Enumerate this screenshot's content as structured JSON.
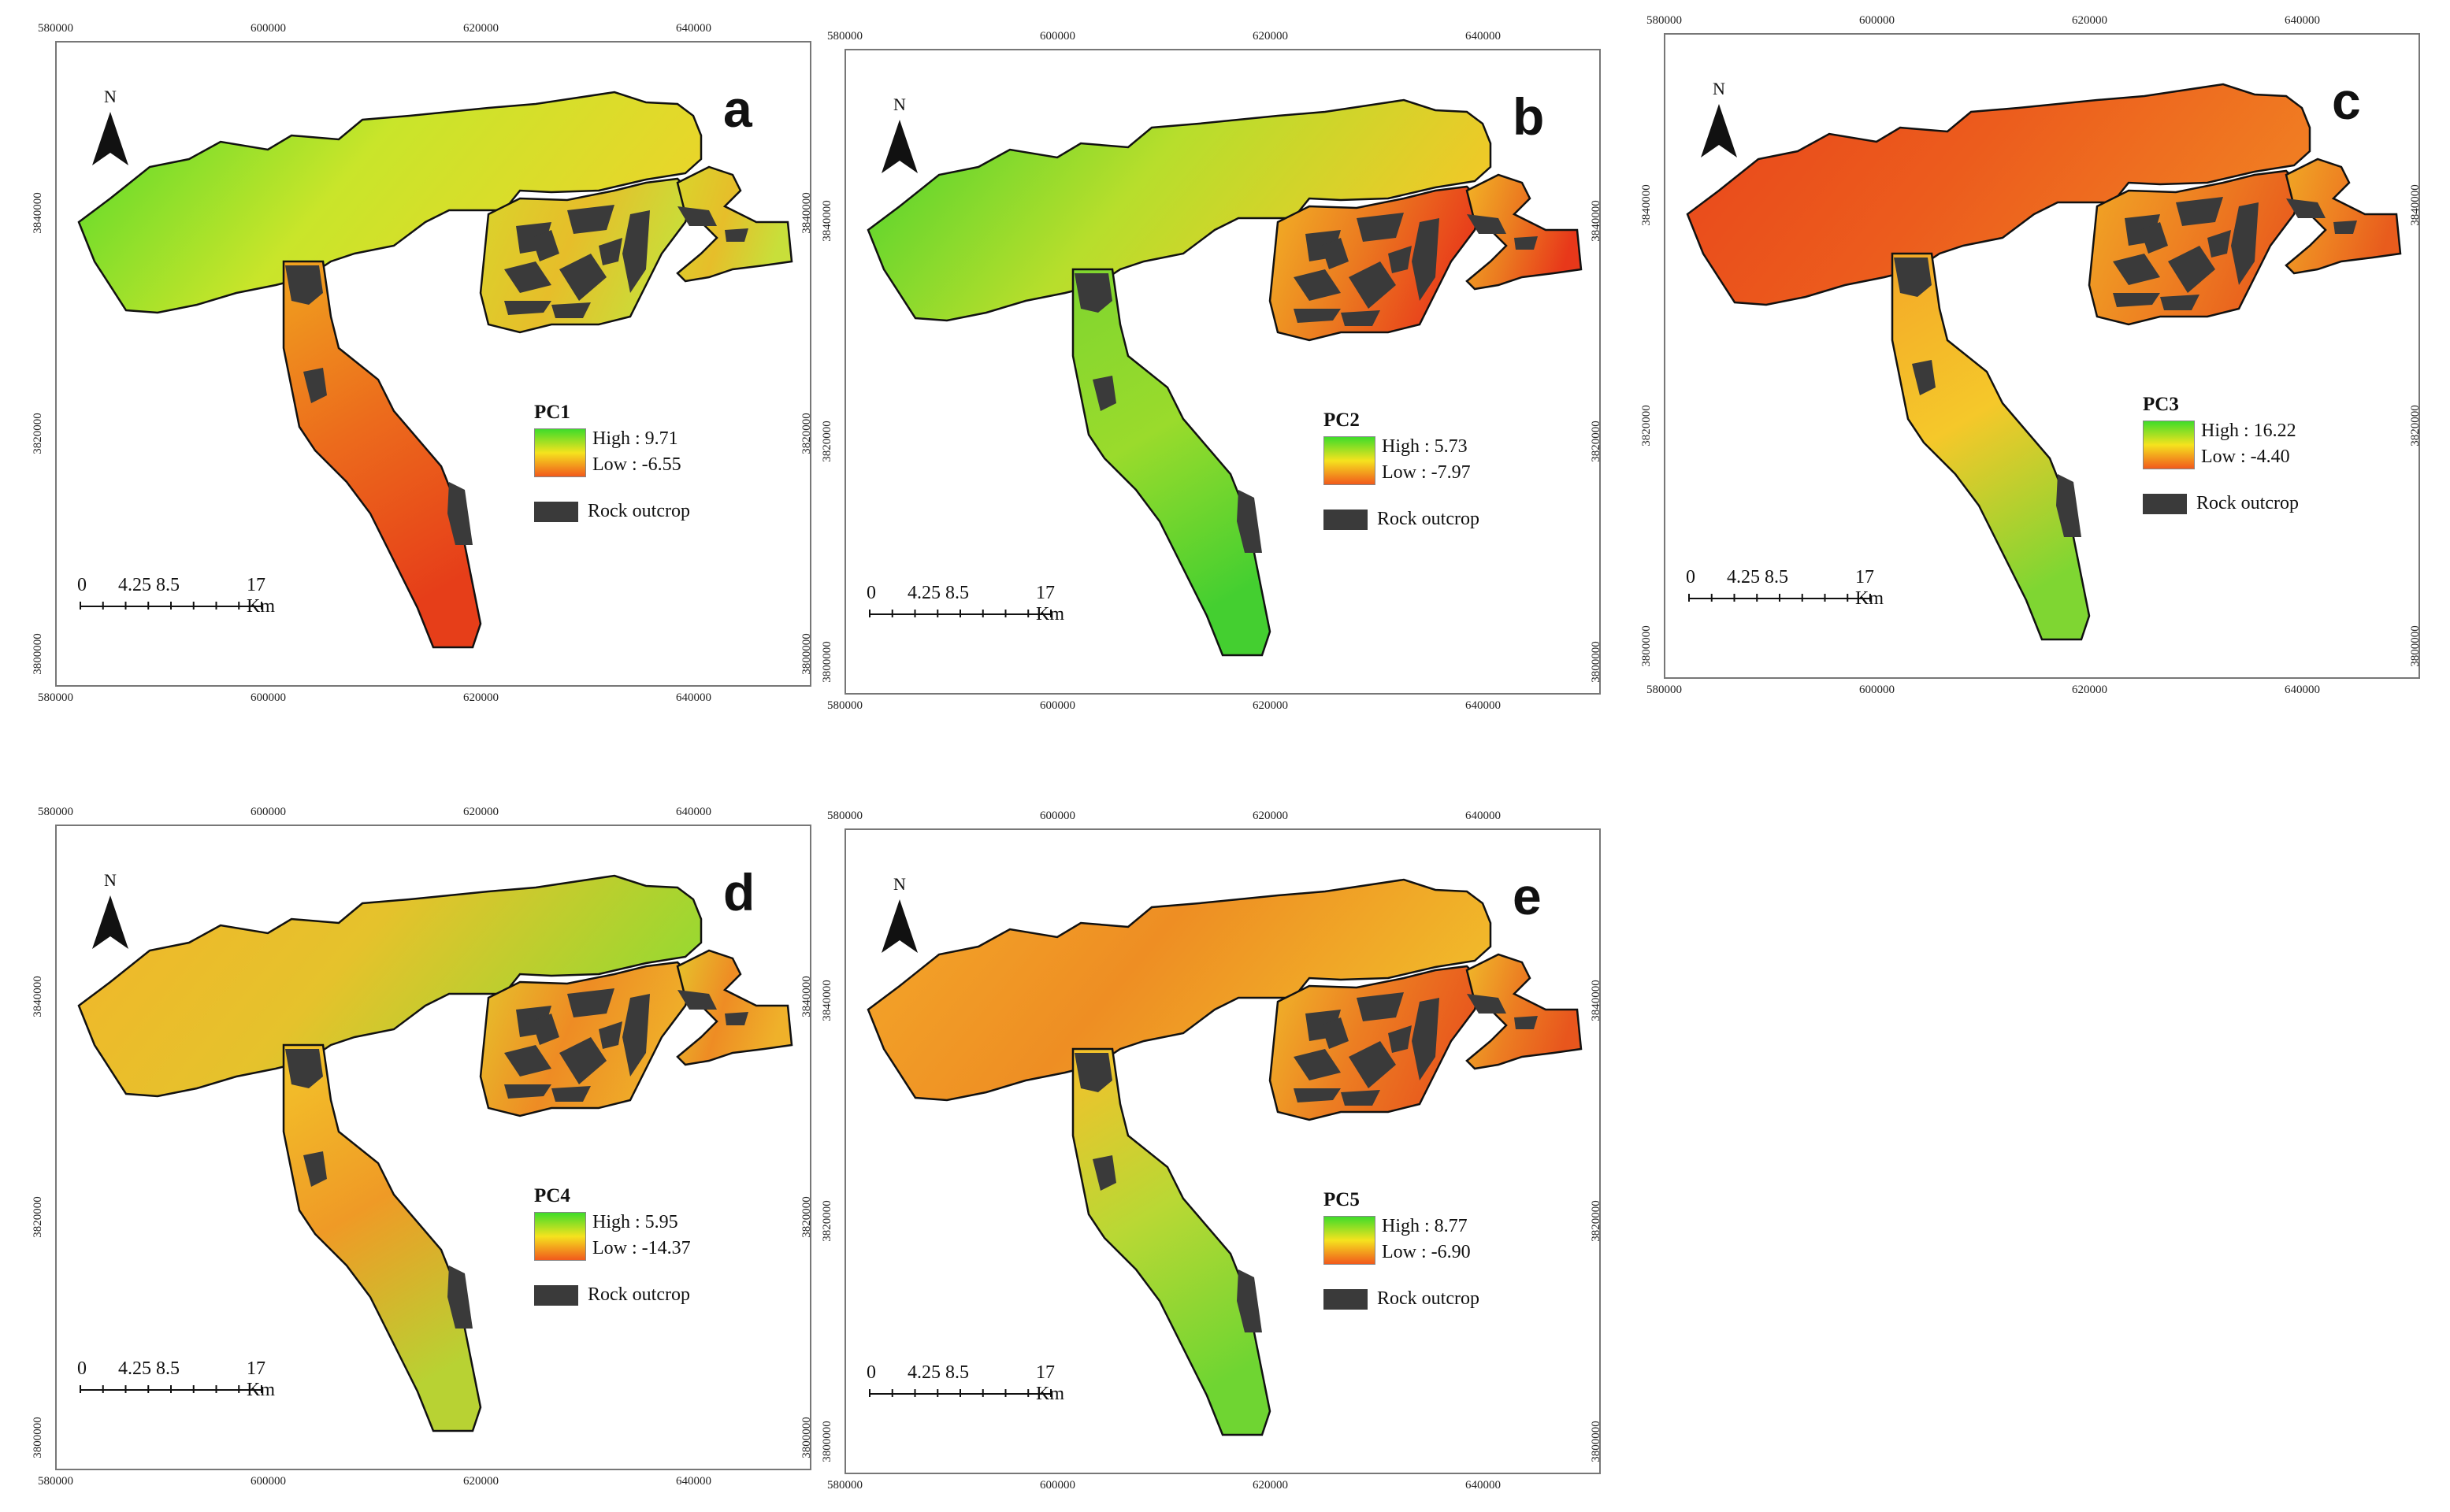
{
  "north_label": "N",
  "rock_label": "Rock outcrop",
  "scale_labels": [
    "0",
    "4.25",
    "8.5",
    "17 Km"
  ],
  "x_ticks": [
    "580000",
    "600000",
    "620000",
    "640000"
  ],
  "y_ticks": [
    "3840000",
    "3820000",
    "3800000"
  ],
  "panels": [
    {
      "letter": "a",
      "title": "PC1",
      "high": "High : 9.71",
      "low": "Low : -6.55"
    },
    {
      "letter": "b",
      "title": "PC2",
      "high": "High : 5.73",
      "low": "Low : -7.97"
    },
    {
      "letter": "c",
      "title": "PC3",
      "high": "High : 16.22",
      "low": "Low : -4.40"
    },
    {
      "letter": "d",
      "title": "PC4",
      "high": "High : 5.95",
      "low": "Low : -14.37"
    },
    {
      "letter": "e",
      "title": "PC5",
      "high": "High : 8.77",
      "low": "Low : -6.90"
    }
  ],
  "colors": {
    "high": "#3fdc2a",
    "mid": "#f5e31e",
    "low": "#e8321a",
    "rock": "#3a3a3a"
  }
}
